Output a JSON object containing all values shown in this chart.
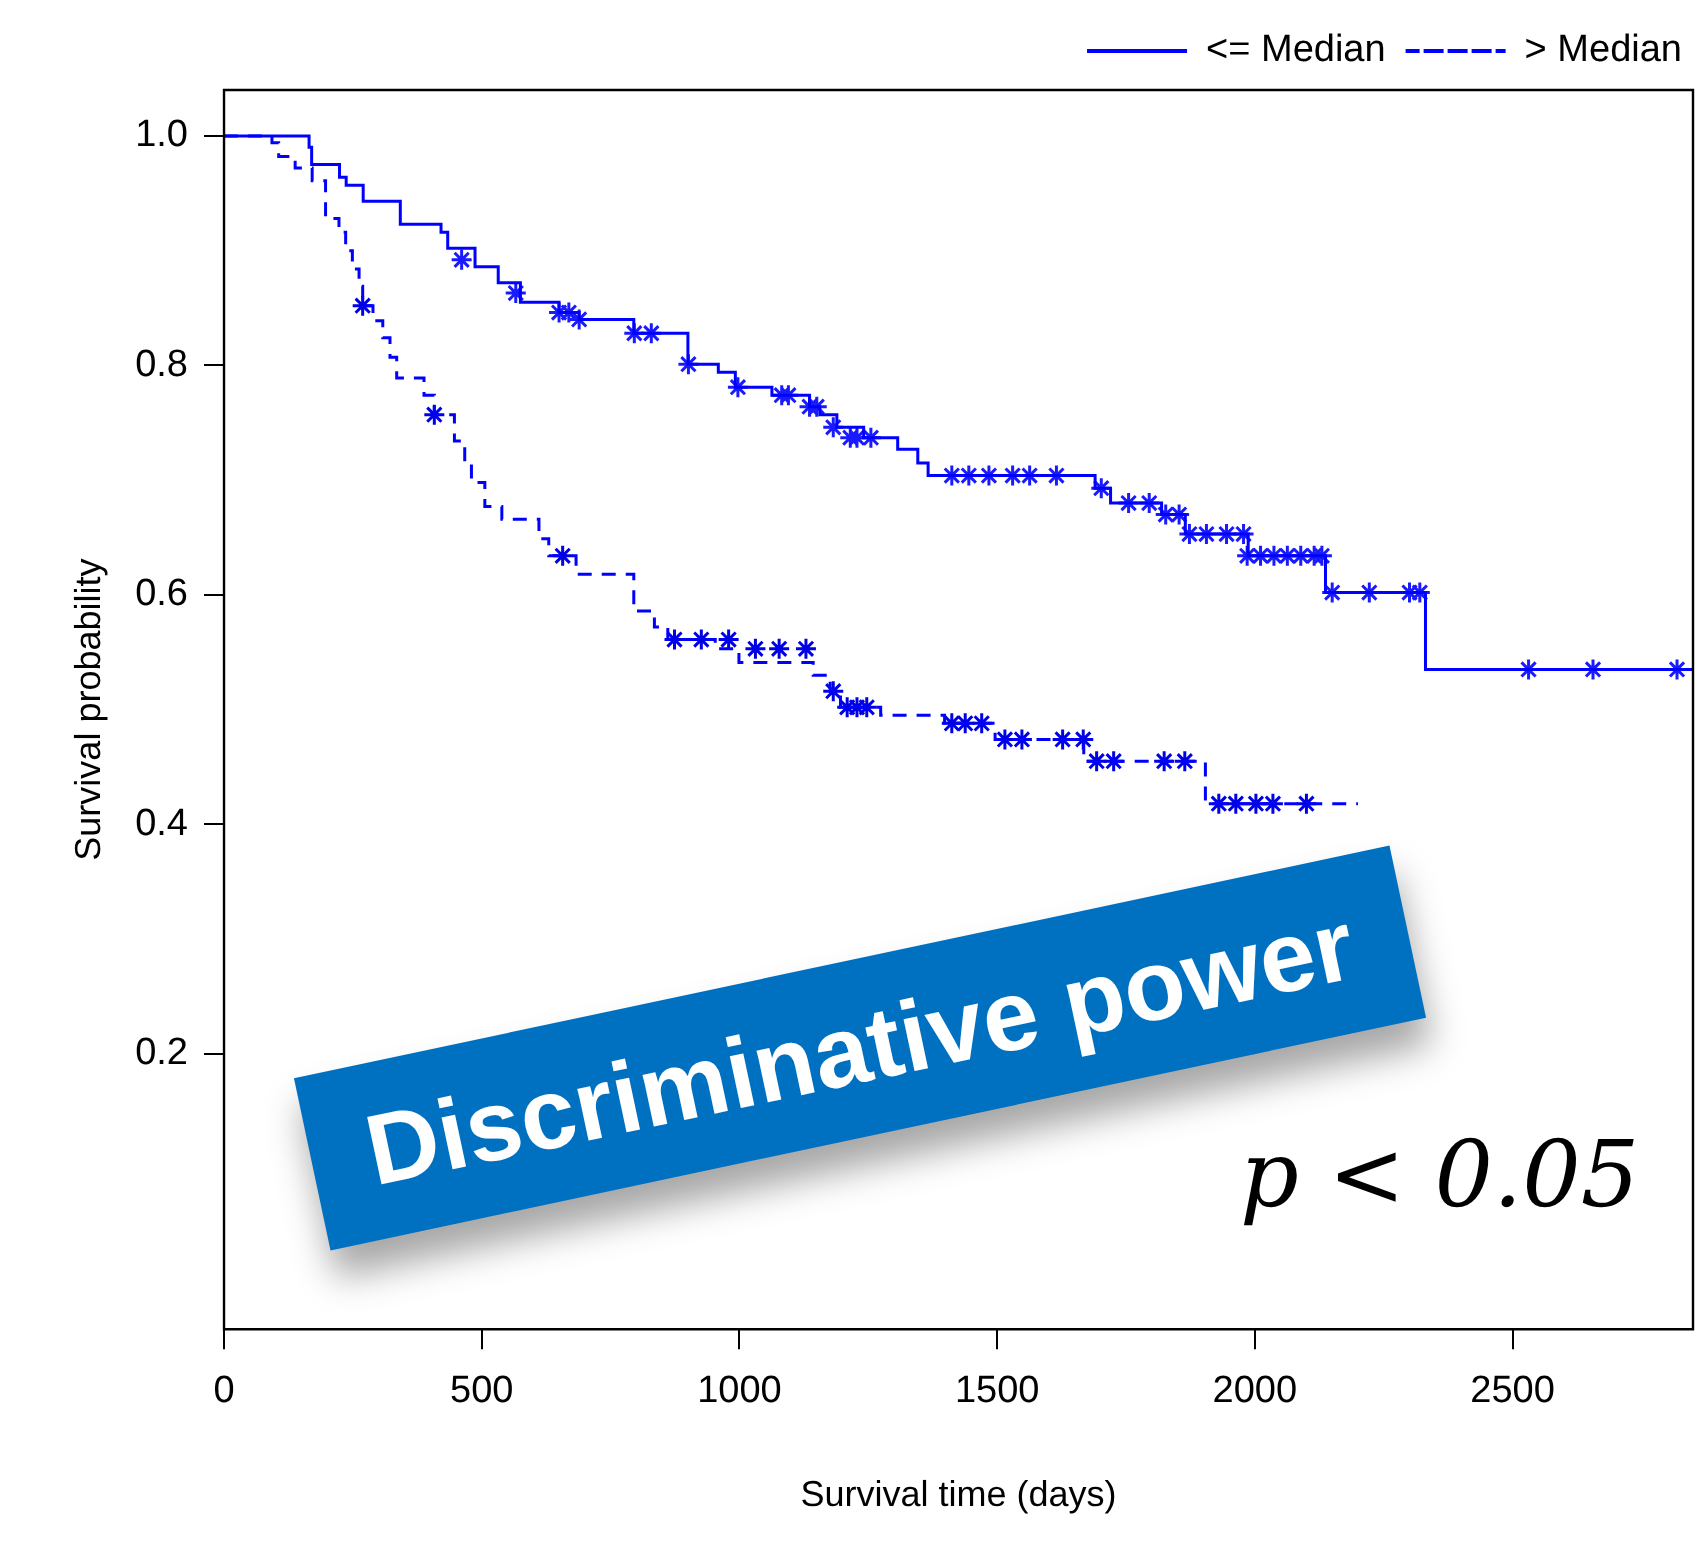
{
  "chart_data": {
    "type": "line",
    "xlabel": "Survival time (days)",
    "ylabel": "Survival probability",
    "xlim": [
      0,
      2850
    ],
    "xticks": [
      0,
      500,
      1000,
      1500,
      2000,
      2500
    ],
    "ylim": [
      -0.04,
      1.04
    ],
    "yticks": [
      0.2,
      0.4,
      0.6,
      0.8,
      {
        "value": 1,
        "label": "1.0"
      }
    ],
    "grid": false,
    "legend": "top right",
    "marker": "none",
    "annotations": [
      "Discriminative power",
      "p < 0.05"
    ],
    "series": [
      {
        "name": "<= Median",
        "color": "#0000ff",
        "line_style": "solid",
        "x": [
          0,
          165,
          165,
          170,
          170,
          224,
          224,
          237,
          237,
          270,
          270,
          342,
          342,
          421,
          421,
          434,
          434,
          487,
          487,
          532,
          532,
          575,
          575,
          650,
          650,
          689,
          689,
          795,
          795,
          900,
          900,
          959,
          959,
          992,
          992,
          1063,
          1063,
          1136,
          1136,
          1156,
          1156,
          1189,
          1189,
          1241,
          1241,
          1307,
          1307,
          1346,
          1346,
          1366,
          1366,
          1690,
          1690,
          1720,
          1720,
          1819,
          1819,
          1865,
          1865,
          1987,
          1987,
          2137,
          2137,
          2331,
          2331,
          2850
        ],
        "values": [
          1.0,
          1.0,
          0.99,
          0.99,
          0.975,
          0.975,
          0.964,
          0.964,
          0.957,
          0.957,
          0.943,
          0.943,
          0.923,
          0.923,
          0.916,
          0.916,
          0.902,
          0.902,
          0.886,
          0.886,
          0.872,
          0.872,
          0.855,
          0.855,
          0.846,
          0.846,
          0.84,
          0.84,
          0.828,
          0.828,
          0.801,
          0.801,
          0.794,
          0.794,
          0.781,
          0.781,
          0.774,
          0.774,
          0.764,
          0.764,
          0.757,
          0.757,
          0.746,
          0.746,
          0.737,
          0.737,
          0.727,
          0.727,
          0.715,
          0.715,
          0.704,
          0.704,
          0.693,
          0.693,
          0.68,
          0.68,
          0.67,
          0.67,
          0.653,
          0.653,
          0.634,
          0.634,
          0.602,
          0.602,
          0.535,
          0.535
        ]
      },
      {
        "name": "> Median",
        "color": "#0000ff",
        "line_style": "dashed",
        "x": [
          0,
          93,
          93,
          106,
          106,
          138,
          138,
          171,
          171,
          197,
          197,
          223,
          223,
          236,
          236,
          249,
          249,
          262,
          262,
          269,
          269,
          289,
          289,
          308,
          308,
          322,
          322,
          335,
          335,
          388,
          388,
          408,
          408,
          447,
          447,
          467,
          467,
          480,
          480,
          506,
          506,
          539,
          539,
          611,
          611,
          630,
          630,
          683,
          683,
          795,
          795,
          835,
          835,
          861,
          861,
          953,
          953,
          999,
          999,
          1143,
          1143,
          1176,
          1176,
          1196,
          1196,
          1274,
          1274,
          1398,
          1398,
          1496,
          1496,
          1668,
          1668,
          1904,
          1904,
          2200
        ],
        "values": [
          1.0,
          1.0,
          0.994,
          0.994,
          0.982,
          0.982,
          0.972,
          0.972,
          0.961,
          0.961,
          0.928,
          0.928,
          0.916,
          0.916,
          0.9,
          0.9,
          0.884,
          0.884,
          0.869,
          0.869,
          0.852,
          0.852,
          0.839,
          0.839,
          0.824,
          0.824,
          0.807,
          0.807,
          0.789,
          0.789,
          0.774,
          0.774,
          0.757,
          0.757,
          0.734,
          0.734,
          0.716,
          0.716,
          0.698,
          0.698,
          0.677,
          0.677,
          0.666,
          0.666,
          0.649,
          0.649,
          0.634,
          0.634,
          0.618,
          0.618,
          0.586,
          0.586,
          0.572,
          0.572,
          0.561,
          0.561,
          0.553,
          0.553,
          0.541,
          0.541,
          0.53,
          0.53,
          0.516,
          0.516,
          0.502,
          0.502,
          0.495,
          0.495,
          0.488,
          0.488,
          0.474,
          0.474,
          0.455,
          0.455,
          0.418,
          0.418
        ]
      },
      {
        "type": "scatter",
        "marker": "cross",
        "color": "#1a1aff",
        "x": [
          461,
          566,
          650,
          669,
          689,
          796,
          829,
          901,
          997,
          1082,
          1095,
          1136,
          1150,
          1182,
          1215,
          1228,
          1255,
          1412,
          1445,
          1484,
          1530,
          1563,
          1615,
          1702,
          1755,
          1795,
          1827,
          1853,
          1873,
          1906,
          1945,
          1978,
          1985,
          2011,
          2037,
          2063,
          2089,
          2115,
          2130,
          2150,
          2222,
          2300,
          2320,
          2531,
          2656,
          2819
        ],
        "values": [
          0.892,
          0.863,
          0.846,
          0.846,
          0.84,
          0.828,
          0.828,
          0.801,
          0.781,
          0.774,
          0.774,
          0.764,
          0.764,
          0.746,
          0.737,
          0.737,
          0.737,
          0.704,
          0.704,
          0.704,
          0.704,
          0.704,
          0.704,
          0.693,
          0.68,
          0.68,
          0.67,
          0.67,
          0.653,
          0.653,
          0.653,
          0.653,
          0.634,
          0.634,
          0.634,
          0.634,
          0.634,
          0.634,
          0.634,
          0.602,
          0.602,
          0.602,
          0.602,
          0.535,
          0.535,
          0.535
        ]
      },
      {
        "type": "scatter",
        "marker": "cross",
        "color": "#0000e6",
        "x": [
          269,
          408,
          657,
          874,
          926,
          979,
          1031,
          1077,
          1129,
          1182,
          1209,
          1228,
          1247,
          1412,
          1438,
          1470,
          1515,
          1548,
          1627,
          1667,
          1693,
          1726,
          1824,
          1864,
          1930,
          1963,
          2002,
          2035,
          2100
        ],
        "values": [
          0.852,
          0.757,
          0.634,
          0.561,
          0.561,
          0.561,
          0.553,
          0.553,
          0.553,
          0.516,
          0.502,
          0.502,
          0.502,
          0.488,
          0.488,
          0.488,
          0.474,
          0.474,
          0.474,
          0.474,
          0.455,
          0.455,
          0.455,
          0.455,
          0.418,
          0.418,
          0.418,
          0.418,
          0.418
        ]
      }
    ]
  }
}
